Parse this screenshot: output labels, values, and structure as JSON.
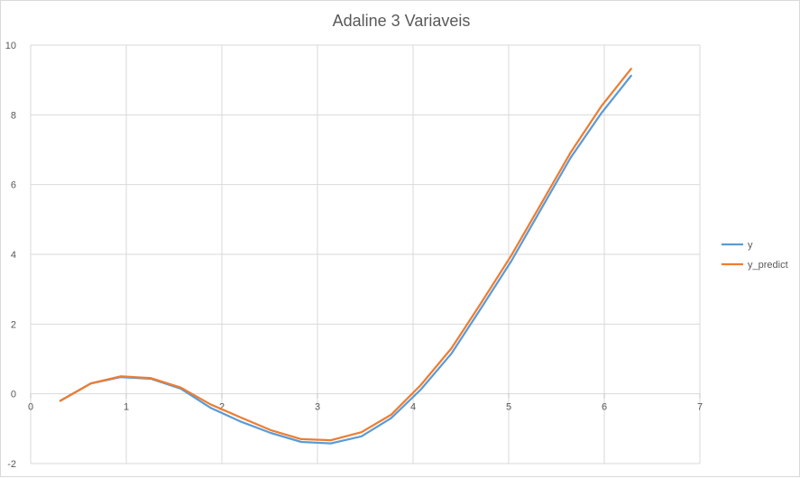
{
  "chart_data": {
    "type": "line",
    "title": "Adaline 3 Variaveis",
    "xlim": [
      0,
      7
    ],
    "ylim": [
      -2,
      10
    ],
    "x_ticks": [
      "0",
      "1",
      "2",
      "3",
      "4",
      "5",
      "6",
      "7"
    ],
    "y_ticks": [
      "-2",
      "0",
      "2",
      "4",
      "6",
      "8",
      "10"
    ],
    "grid": true,
    "legend_position": "right",
    "series": [
      {
        "name": "y",
        "color": "#5b9bd5",
        "x": [
          0.31,
          0.63,
          0.94,
          1.26,
          1.57,
          1.88,
          2.2,
          2.51,
          2.83,
          3.14,
          3.46,
          3.77,
          4.08,
          4.4,
          4.71,
          5.03,
          5.34,
          5.65,
          5.97,
          6.28
        ],
        "y": [
          -0.2,
          0.3,
          0.48,
          0.43,
          0.15,
          -0.4,
          -0.8,
          -1.12,
          -1.38,
          -1.42,
          -1.22,
          -0.7,
          0.12,
          1.15,
          2.45,
          3.82,
          5.3,
          6.78,
          8.05,
          9.12
        ]
      },
      {
        "name": "y_predict",
        "color": "#ed7d31",
        "x": [
          0.31,
          0.63,
          0.94,
          1.26,
          1.57,
          1.88,
          2.2,
          2.51,
          2.83,
          3.14,
          3.46,
          3.77,
          4.08,
          4.4,
          4.71,
          5.03,
          5.34,
          5.65,
          5.97,
          6.28
        ],
        "y": [
          -0.2,
          0.3,
          0.5,
          0.45,
          0.18,
          -0.3,
          -0.68,
          -1.04,
          -1.3,
          -1.33,
          -1.1,
          -0.6,
          0.25,
          1.3,
          2.6,
          3.98,
          5.45,
          6.93,
          8.25,
          9.32
        ]
      }
    ]
  }
}
